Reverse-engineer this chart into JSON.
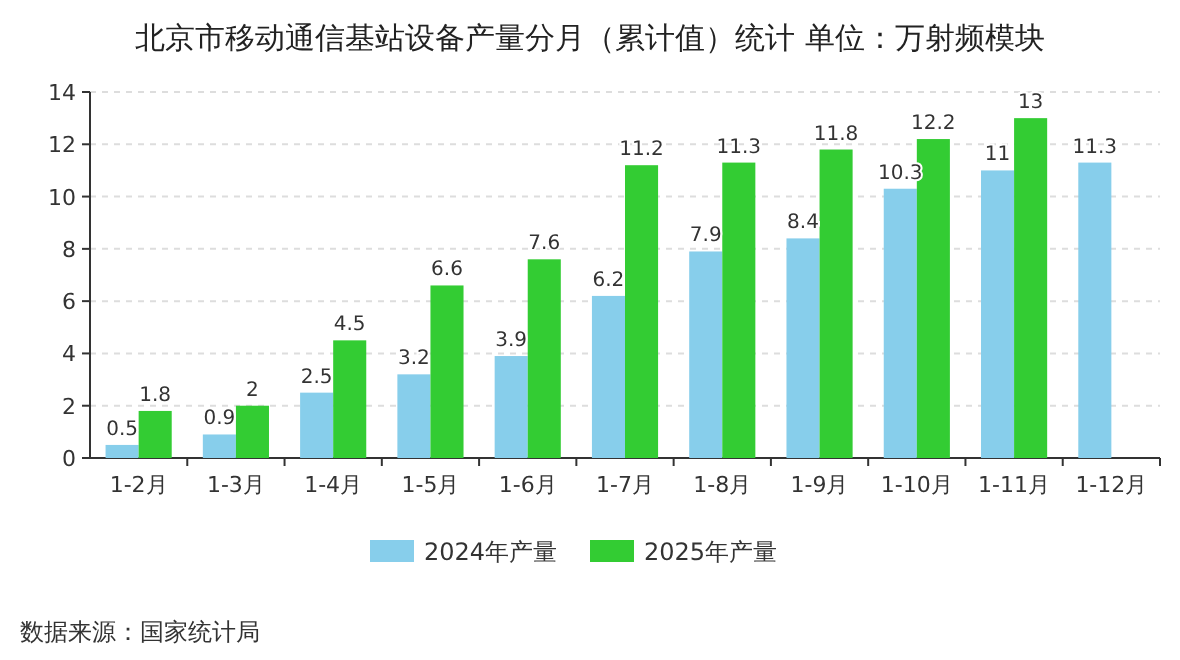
{
  "chart_data": {
    "type": "bar",
    "title": "北京市移动通信基站设备产量分月（累计值）统计  单位：万射频模块",
    "categories": [
      "1-2月",
      "1-3月",
      "1-4月",
      "1-5月",
      "1-6月",
      "1-7月",
      "1-8月",
      "1-9月",
      "1-10月",
      "1-11月",
      "1-12月"
    ],
    "series": [
      {
        "name": "2024年产量",
        "color": "#87ceeb",
        "values": [
          0.5,
          0.9,
          2.5,
          3.2,
          3.9,
          6.2,
          7.9,
          8.4,
          10.3,
          11,
          11.3
        ]
      },
      {
        "name": "2025年产量",
        "color": "#33cc33",
        "values": [
          1.8,
          2,
          4.5,
          6.6,
          7.6,
          11.2,
          11.3,
          11.8,
          12.2,
          13,
          null
        ]
      }
    ],
    "ylim": [
      0,
      14
    ],
    "yticks": [
      0,
      2,
      4,
      6,
      8,
      10,
      12,
      14
    ],
    "grid": "y",
    "legend": "bottom",
    "data_labels": true,
    "annotations": [
      "数据来源：国家统计局"
    ]
  }
}
